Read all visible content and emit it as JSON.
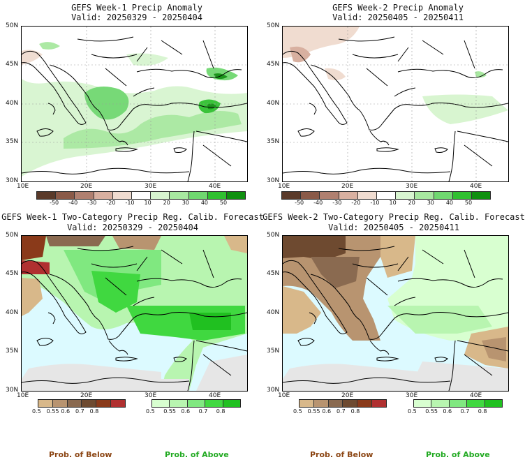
{
  "panels": {
    "tl": {
      "title1": "GEFS Week-1 Precip Anomaly",
      "title2": "Valid: 20250329 - 20250404"
    },
    "tr": {
      "title1": "GEFS Week-2 Precip Anomaly",
      "title2": "Valid: 20250405 - 20250411"
    },
    "bl": {
      "title1": "GEFS Week-1 Two-Category Precip Reg. Calib. Forecast",
      "title2": "Valid: 20250329 - 20250404"
    },
    "br": {
      "title1": "GEFS Week-2 Two-Category Precip Reg. Calib. Forecast",
      "title2": "Valid: 20250405 - 20250411"
    }
  },
  "axes": {
    "lat": [
      "50N",
      "45N",
      "40N",
      "35N",
      "30N"
    ],
    "lon": [
      "10E",
      "20E",
      "30E",
      "40E"
    ]
  },
  "anomaly_colorbar": {
    "labels": [
      "-50",
      "-40",
      "-30",
      "-20",
      "-10",
      "10",
      "20",
      "30",
      "40",
      "50"
    ],
    "colors": [
      "#5a3a2a",
      "#8a5a48",
      "#b08070",
      "#d8b0a0",
      "#f0dcd0",
      "#ffffff",
      "#d8f5d0",
      "#a8e8a0",
      "#70d870",
      "#30c030",
      "#109010"
    ]
  },
  "prob_below_colorbar": {
    "labels": [
      "0.5",
      "0.55",
      "0.6",
      "0.7",
      "0.8"
    ],
    "colors": [
      "#d8b88a",
      "#b89470",
      "#8a6a50",
      "#6e4a30",
      "#8a3a1a",
      "#b03030"
    ]
  },
  "prob_above_colorbar": {
    "labels": [
      "0.5",
      "0.55",
      "0.6",
      "0.7",
      "0.8"
    ],
    "colors": [
      "#d8ffd0",
      "#b8f5b0",
      "#80e880",
      "#40d840",
      "#20c020"
    ]
  },
  "footer": {
    "below_label": "Prob. of Below",
    "above_label": "Prob. of Above",
    "below_color": "#8b4513",
    "above_color": "#22aa22"
  },
  "map_colors": {
    "sea_prob": "#dcfaff",
    "missing": "#e6e6e6",
    "grid": "#999999"
  }
}
